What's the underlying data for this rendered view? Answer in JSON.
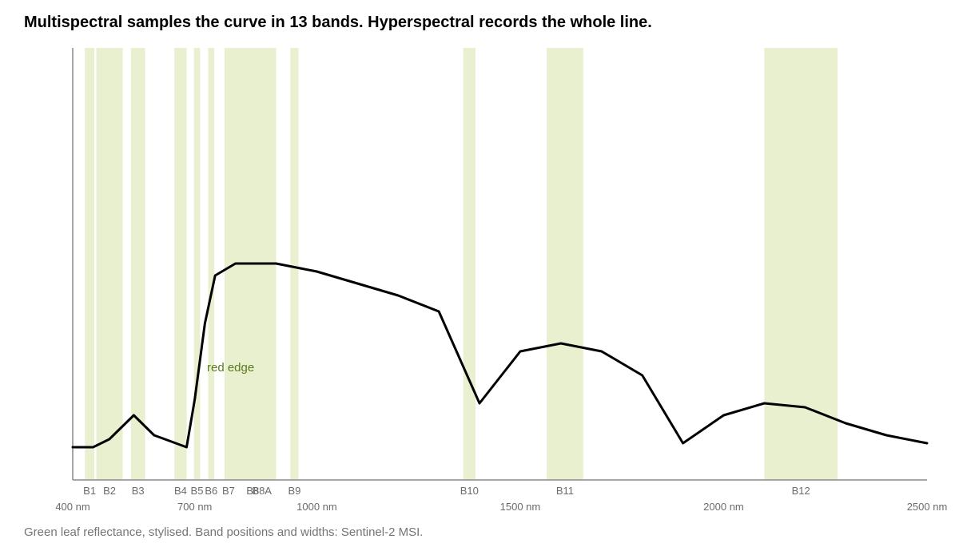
{
  "title": "Multispectral samples the curve in 13 bands. Hyperspectral records the whole line.",
  "caption": "Green leaf reflectance, stylised. Band positions and widths: Sentinel-2 MSI.",
  "colors": {
    "band_fill": "#e8f0d0",
    "curve": "#000000",
    "axis": "#8a8a8a",
    "label_text": "#6b6b6b",
    "annotation": "#5a7a1e"
  },
  "chart_data": {
    "type": "line",
    "title": "Multispectral samples the curve in 13 bands. Hyperspectral records the whole line.",
    "xlabel": "",
    "ylabel": "",
    "x_unit": "nm",
    "xlim": [
      400,
      2500
    ],
    "ylim": [
      0,
      1
    ],
    "x_tick_labels": [
      {
        "value": 400,
        "label": "400 nm"
      },
      {
        "value": 700,
        "label": "700 nm"
      },
      {
        "value": 1000,
        "label": "1000 nm"
      },
      {
        "value": 1500,
        "label": "1500 nm"
      },
      {
        "value": 2000,
        "label": "2000 nm"
      },
      {
        "value": 2500,
        "label": "2500 nm"
      }
    ],
    "y_ticks_shown": false,
    "grid": false,
    "bands": [
      {
        "name": "B1",
        "start": 430,
        "end": 453
      },
      {
        "name": "B2",
        "start": 458,
        "end": 523
      },
      {
        "name": "B3",
        "start": 543,
        "end": 578
      },
      {
        "name": "B4",
        "start": 650,
        "end": 680
      },
      {
        "name": "B5",
        "start": 698,
        "end": 713
      },
      {
        "name": "B6",
        "start": 733,
        "end": 748
      },
      {
        "name": "B7",
        "start": 773,
        "end": 793
      },
      {
        "name": "B8",
        "start": 785,
        "end": 900
      },
      {
        "name": "B8A",
        "start": 855,
        "end": 875
      },
      {
        "name": "B9",
        "start": 935,
        "end": 955
      },
      {
        "name": "B10",
        "start": 1360,
        "end": 1390
      },
      {
        "name": "B11",
        "start": 1565,
        "end": 1655
      },
      {
        "name": "B12",
        "start": 2100,
        "end": 2280
      }
    ],
    "series": [
      {
        "x": [
          400,
          450,
          490,
          550,
          600,
          680,
          700,
          725,
          750,
          800,
          900,
          1000,
          1200,
          1300,
          1400,
          1500,
          1600,
          1700,
          1800,
          1900,
          2000,
          2100,
          2200,
          2300,
          2400,
          2500
        ],
        "y": [
          0.04,
          0.04,
          0.06,
          0.12,
          0.07,
          0.04,
          0.16,
          0.35,
          0.47,
          0.5,
          0.5,
          0.48,
          0.42,
          0.38,
          0.15,
          0.28,
          0.3,
          0.28,
          0.22,
          0.05,
          0.12,
          0.15,
          0.14,
          0.1,
          0.07,
          0.05
        ]
      }
    ],
    "annotations": [
      {
        "text": "red edge",
        "x": 730,
        "y": 0.24
      }
    ]
  }
}
